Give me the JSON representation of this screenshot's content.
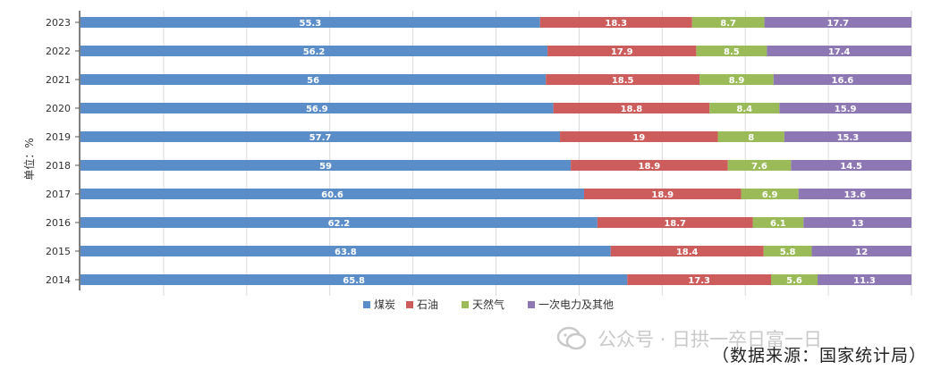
{
  "chart_data": {
    "type": "bar",
    "orientation": "horizontal",
    "stacked": true,
    "categories": [
      "2023",
      "2022",
      "2021",
      "2020",
      "2019",
      "2018",
      "2017",
      "2016",
      "2015",
      "2014"
    ],
    "series": [
      {
        "name": "煤炭",
        "color": "#5b8dc9",
        "values": [
          55.3,
          56.2,
          56,
          56.9,
          57.7,
          59,
          60.6,
          62.2,
          63.8,
          65.8
        ]
      },
      {
        "name": "石油",
        "color": "#cd5c5c",
        "values": [
          18.3,
          17.9,
          18.5,
          18.8,
          19,
          18.9,
          18.9,
          18.7,
          18.4,
          17.3
        ]
      },
      {
        "name": "天然气",
        "color": "#9bbb59",
        "values": [
          8.7,
          8.5,
          8.9,
          8.4,
          8,
          7.6,
          6.9,
          6.1,
          5.8,
          5.6
        ]
      },
      {
        "name": "一次电力及其他",
        "color": "#8e78b4",
        "values": [
          17.7,
          17.4,
          16.6,
          15.9,
          15.3,
          14.5,
          13.6,
          13,
          12,
          11.3
        ]
      }
    ],
    "value_labels": [
      [
        "55.3",
        "18.3",
        "8.7",
        "17.7"
      ],
      [
        "56.2",
        "17.9",
        "8.5",
        "17.4"
      ],
      [
        "56",
        "18.5",
        "8.9",
        "16.6"
      ],
      [
        "56.9",
        "18.8",
        "8.4",
        "15.9"
      ],
      [
        "57.7",
        "19",
        "8",
        "15.3"
      ],
      [
        "59",
        "18.9",
        "7.6",
        "14.5"
      ],
      [
        "60.6",
        "18.9",
        "6.9",
        "13.6"
      ],
      [
        "62.2",
        "18.7",
        "6.1",
        "13"
      ],
      [
        "63.8",
        "18.4",
        "5.8",
        "12"
      ],
      [
        "65.8",
        "17.3",
        "5.6",
        "11.3"
      ]
    ],
    "xlim": [
      0,
      100
    ],
    "ylabel": "单位：%",
    "legend_position": "bottom-center"
  },
  "watermark": {
    "text": "公众号 · 日拱一卒日富一日",
    "icon": "wechat-icon"
  },
  "source": "（数据来源：国家统计局）"
}
